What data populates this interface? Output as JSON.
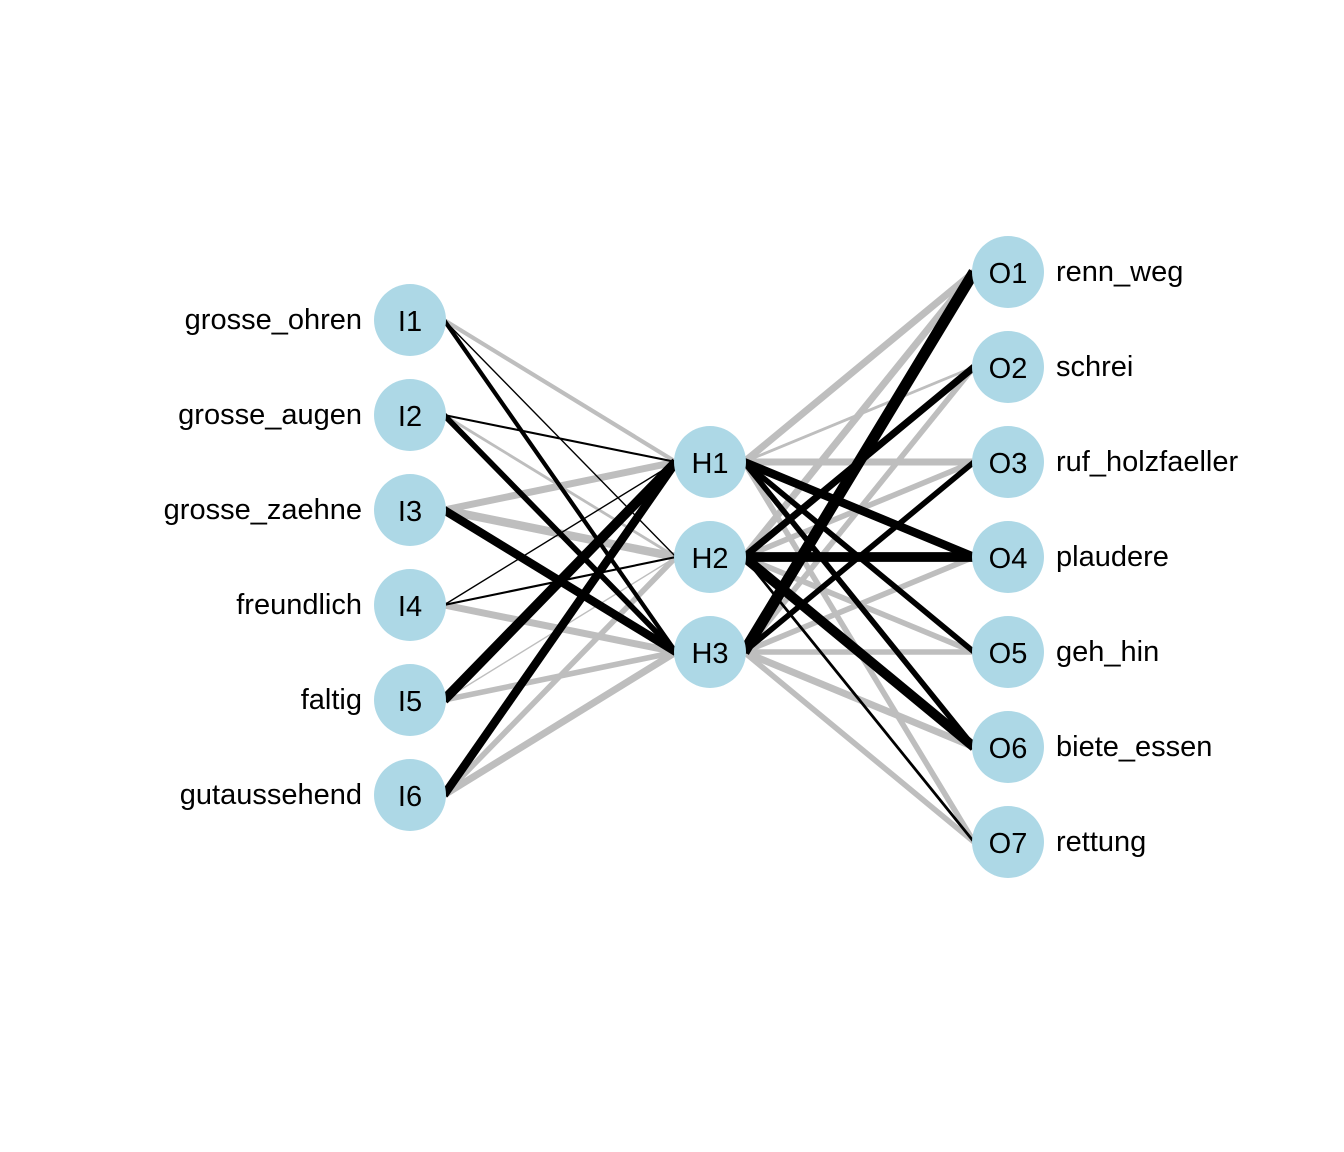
{
  "colors": {
    "node_fill": "#add8e6",
    "positive_edge": "#000000",
    "negative_edge": "#bebebe",
    "background": "#ffffff"
  },
  "layers": {
    "input": [
      {
        "id": "I1",
        "label": "grosse_ohren"
      },
      {
        "id": "I2",
        "label": "grosse_augen"
      },
      {
        "id": "I3",
        "label": "grosse_zaehne"
      },
      {
        "id": "I4",
        "label": "freundlich"
      },
      {
        "id": "I5",
        "label": "faltig"
      },
      {
        "id": "I6",
        "label": "gutaussehend"
      }
    ],
    "hidden": [
      {
        "id": "H1"
      },
      {
        "id": "H2"
      },
      {
        "id": "H3"
      }
    ],
    "output": [
      {
        "id": "O1",
        "label": "renn_weg"
      },
      {
        "id": "O2",
        "label": "schrei"
      },
      {
        "id": "O3",
        "label": "ruf_holzfaeller"
      },
      {
        "id": "O4",
        "label": "plaudere"
      },
      {
        "id": "O5",
        "label": "geh_hin"
      },
      {
        "id": "O6",
        "label": "biete_essen"
      },
      {
        "id": "O7",
        "label": "rettung"
      }
    ]
  },
  "edges": [
    {
      "from": "I1",
      "to": "H1",
      "sign": "negative",
      "weight": 3
    },
    {
      "from": "I1",
      "to": "H2",
      "sign": "positive",
      "weight": 1
    },
    {
      "from": "I1",
      "to": "H3",
      "sign": "positive",
      "weight": 3
    },
    {
      "from": "I2",
      "to": "H1",
      "sign": "positive",
      "weight": 1.5
    },
    {
      "from": "I2",
      "to": "H2",
      "sign": "negative",
      "weight": 2
    },
    {
      "from": "I2",
      "to": "H3",
      "sign": "positive",
      "weight": 4
    },
    {
      "from": "I3",
      "to": "H1",
      "sign": "negative",
      "weight": 5
    },
    {
      "from": "I3",
      "to": "H2",
      "sign": "negative",
      "weight": 6
    },
    {
      "from": "I3",
      "to": "H3",
      "sign": "positive",
      "weight": 6
    },
    {
      "from": "I4",
      "to": "H1",
      "sign": "positive",
      "weight": 1
    },
    {
      "from": "I4",
      "to": "H2",
      "sign": "positive",
      "weight": 1.5
    },
    {
      "from": "I4",
      "to": "H3",
      "sign": "negative",
      "weight": 5
    },
    {
      "from": "I5",
      "to": "H1",
      "sign": "positive",
      "weight": 7
    },
    {
      "from": "I5",
      "to": "H2",
      "sign": "negative",
      "weight": 1
    },
    {
      "from": "I5",
      "to": "H3",
      "sign": "negative",
      "weight": 4
    },
    {
      "from": "I6",
      "to": "H1",
      "sign": "positive",
      "weight": 6
    },
    {
      "from": "I6",
      "to": "H2",
      "sign": "negative",
      "weight": 4
    },
    {
      "from": "I6",
      "to": "H3",
      "sign": "negative",
      "weight": 5
    },
    {
      "from": "H1",
      "to": "O1",
      "sign": "negative",
      "weight": 5
    },
    {
      "from": "H1",
      "to": "O2",
      "sign": "negative",
      "weight": 2
    },
    {
      "from": "H1",
      "to": "O3",
      "sign": "negative",
      "weight": 5
    },
    {
      "from": "H1",
      "to": "O4",
      "sign": "positive",
      "weight": 6
    },
    {
      "from": "H1",
      "to": "O5",
      "sign": "positive",
      "weight": 4
    },
    {
      "from": "H1",
      "to": "O6",
      "sign": "positive",
      "weight": 4
    },
    {
      "from": "H1",
      "to": "O7",
      "sign": "negative",
      "weight": 4
    },
    {
      "from": "H2",
      "to": "O1",
      "sign": "negative",
      "weight": 5
    },
    {
      "from": "H2",
      "to": "O2",
      "sign": "positive",
      "weight": 5
    },
    {
      "from": "H2",
      "to": "O3",
      "sign": "negative",
      "weight": 4
    },
    {
      "from": "H2",
      "to": "O4",
      "sign": "positive",
      "weight": 7
    },
    {
      "from": "H2",
      "to": "O5",
      "sign": "negative",
      "weight": 4
    },
    {
      "from": "H2",
      "to": "O6",
      "sign": "positive",
      "weight": 7
    },
    {
      "from": "H2",
      "to": "O7",
      "sign": "positive",
      "weight": 2
    },
    {
      "from": "H3",
      "to": "O1",
      "sign": "positive",
      "weight": 8
    },
    {
      "from": "H3",
      "to": "O2",
      "sign": "negative",
      "weight": 4
    },
    {
      "from": "H3",
      "to": "O3",
      "sign": "positive",
      "weight": 4
    },
    {
      "from": "H3",
      "to": "O4",
      "sign": "negative",
      "weight": 4
    },
    {
      "from": "H3",
      "to": "O5",
      "sign": "negative",
      "weight": 4
    },
    {
      "from": "H3",
      "to": "O6",
      "sign": "negative",
      "weight": 5
    },
    {
      "from": "H3",
      "to": "O7",
      "sign": "negative",
      "weight": 4
    }
  ]
}
